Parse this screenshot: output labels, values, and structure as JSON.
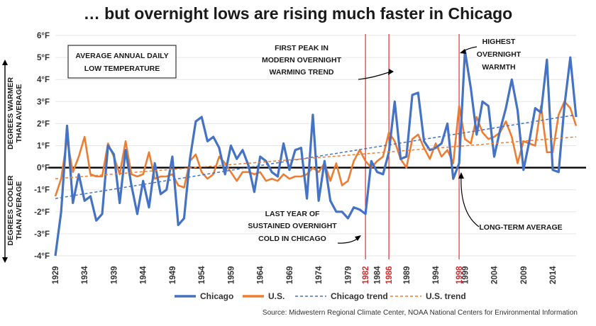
{
  "title": "… but overnight lows are rising much faster in Chicago",
  "colors": {
    "chicago": "#4472C4",
    "us": "#ED7D31",
    "highlight": "#E03030",
    "zero": "#000000"
  },
  "chart_data": {
    "type": "line",
    "title": "… but overnight lows are rising much faster in Chicago",
    "box_label": [
      "AVERAGE ANNUAL DAILY",
      "LOW TEMPERATURE"
    ],
    "ylabel_top": [
      "DEGREES WARMER",
      "THAN AVERAGE"
    ],
    "ylabel_bottom": [
      "DEGREES COOLER",
      "THAN AVERAGE"
    ],
    "ylim": [
      -4,
      6
    ],
    "yticks": [
      -4,
      -3,
      -2,
      -1,
      0,
      1,
      2,
      3,
      4,
      5,
      6
    ],
    "ytick_labels": [
      "-4°F",
      "-3°F",
      "-2°F",
      "-1°F",
      "0°F",
      "1°F",
      "2°F",
      "3°F",
      "4°F",
      "5°F",
      "6°F"
    ],
    "xlim": [
      1929,
      2018
    ],
    "xticks": [
      1929,
      1934,
      1939,
      1944,
      1949,
      1954,
      1959,
      1964,
      1969,
      1974,
      1979,
      1982,
      1984,
      1986,
      1989,
      1994,
      1998,
      1999,
      2004,
      2009,
      2014
    ],
    "highlight_years": [
      1982,
      1986,
      1998
    ],
    "years": [
      1929,
      1930,
      1931,
      1932,
      1933,
      1934,
      1935,
      1936,
      1937,
      1938,
      1939,
      1940,
      1941,
      1942,
      1943,
      1944,
      1945,
      1946,
      1947,
      1948,
      1949,
      1950,
      1951,
      1952,
      1953,
      1954,
      1955,
      1956,
      1957,
      1958,
      1959,
      1960,
      1961,
      1962,
      1963,
      1964,
      1965,
      1966,
      1967,
      1968,
      1969,
      1970,
      1971,
      1972,
      1973,
      1974,
      1975,
      1976,
      1977,
      1978,
      1979,
      1980,
      1981,
      1982,
      1983,
      1984,
      1985,
      1986,
      1987,
      1988,
      1989,
      1990,
      1991,
      1992,
      1993,
      1994,
      1995,
      1996,
      1997,
      1998,
      1999,
      2000,
      2001,
      2002,
      2003,
      2004,
      2005,
      2006,
      2007,
      2008,
      2009,
      2010,
      2011,
      2012,
      2013,
      2014,
      2015,
      2016,
      2017,
      2018
    ],
    "series": [
      {
        "name": "Chicago",
        "style": "solid",
        "values": [
          -4.0,
          -2.0,
          1.9,
          -1.6,
          -0.3,
          -1.5,
          -1.3,
          -2.4,
          -2.1,
          1.0,
          0.6,
          -1.6,
          0.8,
          -0.8,
          -2.1,
          -0.6,
          -1.8,
          0.2,
          -1.2,
          -1.0,
          0.5,
          -2.6,
          -2.3,
          0.4,
          2.1,
          2.3,
          1.2,
          1.4,
          0.9,
          -0.3,
          1.0,
          0.4,
          0.8,
          0.1,
          -1.1,
          0.5,
          0.3,
          -0.2,
          -0.4,
          1.1,
          -0.1,
          0.8,
          0.9,
          -1.4,
          2.4,
          -1.5,
          0.3,
          -1.5,
          -2.0,
          -2.0,
          -2.3,
          -1.8,
          -1.9,
          -2.1,
          0.3,
          -0.2,
          -0.3,
          0.7,
          3.0,
          0.4,
          0.5,
          3.3,
          3.4,
          1.2,
          0.8,
          0.9,
          1.1,
          2.0,
          -0.5,
          0.2,
          5.3,
          3.6,
          1.5,
          3.0,
          2.8,
          0.5,
          1.7,
          2.7,
          4.0,
          2.6,
          -0.1,
          1.2,
          2.7,
          2.5,
          4.9,
          -0.1,
          -0.2,
          2.8,
          5.0,
          2.3
        ]
      },
      {
        "name": "U.S.",
        "style": "solid",
        "values": [
          -1.3,
          -0.5,
          1.3,
          -0.2,
          0.5,
          1.4,
          -0.3,
          -0.4,
          -0.4,
          1.1,
          0.5,
          -0.3,
          1.2,
          -0.3,
          -0.4,
          -0.3,
          0.7,
          -0.5,
          -0.4,
          -0.4,
          -0.3,
          -0.8,
          -0.9,
          0.3,
          0.6,
          -0.2,
          -0.5,
          -0.3,
          0.5,
          0.2,
          -0.2,
          -0.6,
          -0.2,
          -0.2,
          -0.3,
          -0.2,
          -0.6,
          -0.5,
          -0.6,
          -0.3,
          -0.5,
          -0.4,
          -0.4,
          -0.3,
          0.0,
          -0.2,
          0.2,
          -0.6,
          0.2,
          -0.8,
          -0.6,
          0.3,
          0.8,
          0.3,
          0.0,
          0.3,
          0.5,
          1.6,
          1.2,
          0.4,
          0.0,
          1.3,
          1.5,
          0.9,
          0.4,
          1.1,
          0.5,
          0.8,
          0.2,
          2.8,
          1.3,
          1.1,
          2.3,
          1.6,
          1.3,
          1.4,
          1.6,
          2.1,
          1.4,
          0.2,
          1.2,
          1.1,
          1.0,
          2.8,
          0.7,
          0.7,
          2.4,
          3.0,
          2.7,
          1.9
        ]
      },
      {
        "name": "Chicago trend",
        "style": "dashed",
        "x": [
          1929,
          2018
        ],
        "values": [
          -1.4,
          2.4
        ]
      },
      {
        "name": "U.S. trend",
        "style": "dashed",
        "x": [
          1929,
          2018
        ],
        "values": [
          -0.5,
          1.4
        ]
      }
    ],
    "annotations": {
      "first_peak": [
        "FIRST PEAK IN",
        "MODERN OVERNIGHT",
        "WARMING TREND"
      ],
      "highest": [
        "HIGHEST",
        "OVERNIGHT",
        "WARMTH"
      ],
      "last_cold": [
        "LAST YEAR OF",
        "SUSTAINED OVERNIGHT",
        "COLD IN CHICAGO"
      ],
      "long_term": "LONG-TERM AVERAGE"
    },
    "legend": [
      "Chicago",
      "U.S.",
      "Chicago trend",
      "U.S. trend"
    ],
    "source": "Source: Midwestern Regional Climate Center, NOAA National Centers for Environmental Information"
  }
}
